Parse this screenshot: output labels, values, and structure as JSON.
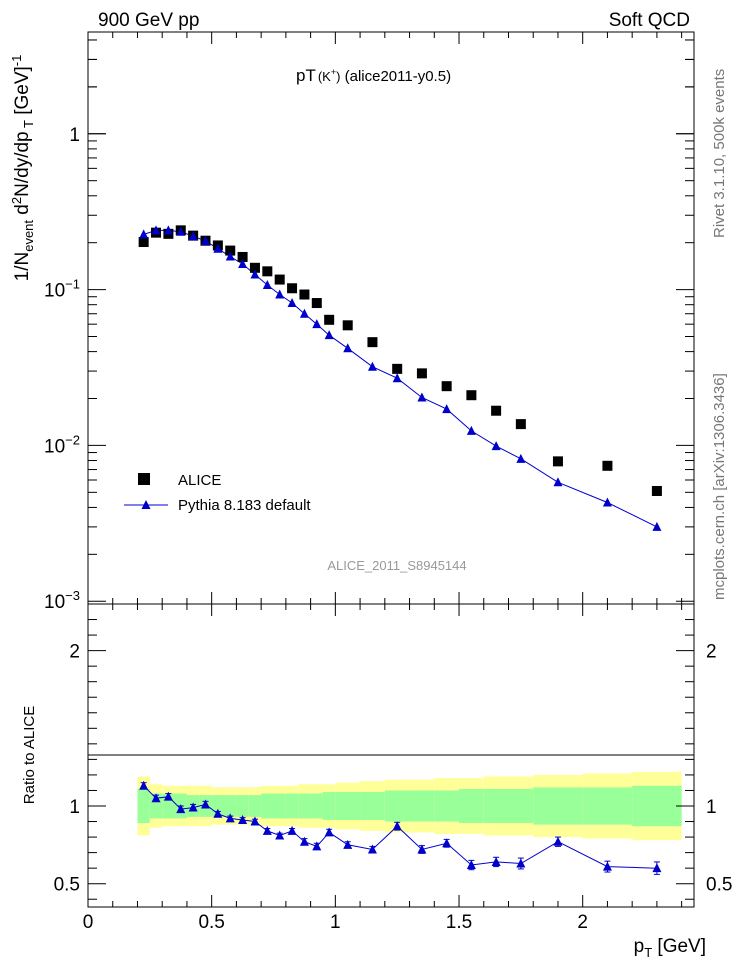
{
  "header": {
    "left": "900 GeV pp",
    "right": "Soft QCD"
  },
  "side_text": {
    "rivet": "Rivet 3.1.10,  500k events",
    "mcplots": "mcplots.cern.ch [arXiv:1306.3436]"
  },
  "chart_data": [
    {
      "type": "scatter",
      "title_main": "pT",
      "title_sup": "(K",
      "title_sup_plus": "+",
      "title_sup_close": ")",
      "title_tail": " (alice2011-y0.5)",
      "analysis_label": "ALICE_2011_S8945144",
      "yscale": "log",
      "ylim": [
        0.00096,
        4.5
      ],
      "xlim": [
        0,
        2.45
      ],
      "ylabel": "1/N_event d²N/dy/dp_T [GeV]⁻¹",
      "y_ticks": [
        {
          "value": 1,
          "label": "1"
        },
        {
          "value": 0.1,
          "label": "10",
          "exp": "−1"
        },
        {
          "value": 0.01,
          "label": "10",
          "exp": "−2"
        },
        {
          "value": 0.001,
          "label": "10",
          "exp": "−3"
        }
      ],
      "legend_position": "bottom-left",
      "series": [
        {
          "name": "ALICE",
          "marker": "square",
          "color": "#000000",
          "x": [
            0.225,
            0.275,
            0.325,
            0.375,
            0.425,
            0.475,
            0.525,
            0.575,
            0.625,
            0.675,
            0.725,
            0.775,
            0.825,
            0.875,
            0.925,
            0.975,
            1.05,
            1.15,
            1.25,
            1.35,
            1.45,
            1.55,
            1.65,
            1.75,
            1.9,
            2.1,
            2.3
          ],
          "y": [
            0.202,
            0.232,
            0.228,
            0.24,
            0.222,
            0.206,
            0.192,
            0.178,
            0.162,
            0.138,
            0.131,
            0.116,
            0.102,
            0.093,
            0.082,
            0.064,
            0.059,
            0.046,
            0.031,
            0.029,
            0.024,
            0.021,
            0.0167,
            0.0137,
            0.0079,
            0.0074,
            0.0051
          ]
        },
        {
          "name": "Pythia 8.183 default",
          "marker": "triangle",
          "color": "#0000cc",
          "x": [
            0.225,
            0.275,
            0.325,
            0.375,
            0.425,
            0.475,
            0.525,
            0.575,
            0.625,
            0.675,
            0.725,
            0.775,
            0.825,
            0.875,
            0.925,
            0.975,
            1.05,
            1.15,
            1.25,
            1.35,
            1.45,
            1.55,
            1.65,
            1.75,
            1.9,
            2.1,
            2.3
          ],
          "y": [
            0.226,
            0.24,
            0.24,
            0.235,
            0.22,
            0.205,
            0.183,
            0.163,
            0.146,
            0.125,
            0.107,
            0.093,
            0.082,
            0.07,
            0.06,
            0.051,
            0.042,
            0.032,
            0.027,
            0.0203,
            0.0171,
            0.0124,
            0.0099,
            0.0082,
            0.0058,
            0.0043,
            0.003
          ]
        }
      ]
    },
    {
      "type": "scatter",
      "ylabel": "Ratio to ALICE",
      "xlabel": "p_T [GeV]",
      "xlim": [
        0,
        2.45
      ],
      "ylim": [
        0.35,
        2.3
      ],
      "y_ticks": [
        0.5,
        1,
        2
      ],
      "y_tick_labels": [
        "0.5",
        "1",
        "2"
      ],
      "x_ticks": [
        0,
        0.5,
        1,
        1.5,
        2
      ],
      "x_tick_labels": [
        "0",
        "0.5",
        "1",
        "1.5",
        "2"
      ],
      "bands": {
        "bin_edges": [
          0.2,
          0.25,
          0.3,
          0.35,
          0.4,
          0.45,
          0.5,
          0.55,
          0.6,
          0.65,
          0.7,
          0.75,
          0.8,
          0.85,
          0.9,
          0.95,
          1.0,
          1.1,
          1.2,
          1.3,
          1.4,
          1.5,
          1.6,
          1.7,
          1.8,
          2.0,
          2.2,
          2.4
        ],
        "outer_color": "#ffff99",
        "inner_color": "#99ff99",
        "outer_halfwidth": [
          0.19,
          0.14,
          0.13,
          0.13,
          0.13,
          0.13,
          0.12,
          0.12,
          0.12,
          0.12,
          0.13,
          0.13,
          0.13,
          0.14,
          0.14,
          0.14,
          0.15,
          0.16,
          0.17,
          0.17,
          0.18,
          0.18,
          0.19,
          0.19,
          0.2,
          0.21,
          0.22
        ],
        "inner_halfwidth": [
          0.11,
          0.08,
          0.08,
          0.08,
          0.07,
          0.07,
          0.07,
          0.07,
          0.07,
          0.07,
          0.08,
          0.08,
          0.08,
          0.08,
          0.08,
          0.09,
          0.09,
          0.09,
          0.1,
          0.1,
          0.1,
          0.11,
          0.11,
          0.11,
          0.12,
          0.12,
          0.13
        ]
      },
      "series": [
        {
          "name": "Pythia 8.183 default",
          "marker": "triangle",
          "color": "#0000cc",
          "x": [
            0.225,
            0.275,
            0.325,
            0.375,
            0.425,
            0.475,
            0.525,
            0.575,
            0.625,
            0.675,
            0.725,
            0.775,
            0.825,
            0.875,
            0.925,
            0.975,
            1.05,
            1.15,
            1.25,
            1.35,
            1.45,
            1.55,
            1.65,
            1.75,
            1.9,
            2.1,
            2.3
          ],
          "y": [
            1.13,
            1.05,
            1.06,
            0.98,
            0.99,
            1.01,
            0.95,
            0.92,
            0.91,
            0.9,
            0.84,
            0.81,
            0.84,
            0.77,
            0.74,
            0.83,
            0.75,
            0.72,
            0.87,
            0.72,
            0.76,
            0.62,
            0.64,
            0.63,
            0.77,
            0.61,
            0.6
          ],
          "err": [
            0.02,
            0.02,
            0.02,
            0.02,
            0.02,
            0.02,
            0.015,
            0.015,
            0.015,
            0.015,
            0.015,
            0.015,
            0.015,
            0.02,
            0.02,
            0.02,
            0.02,
            0.02,
            0.025,
            0.025,
            0.025,
            0.03,
            0.03,
            0.035,
            0.03,
            0.035,
            0.04
          ]
        }
      ]
    }
  ]
}
